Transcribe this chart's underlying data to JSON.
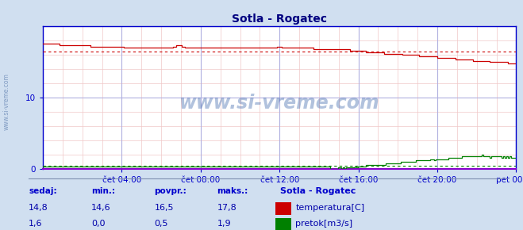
{
  "title": "Sotla - Rogatec",
  "title_color": "#000080",
  "bg_color": "#d0dff0",
  "plot_bg_color": "#ffffff",
  "grid_color_major": "#b0b0e0",
  "grid_color_minor": "#f0c8c8",
  "temp_color": "#cc0000",
  "flow_color": "#008000",
  "axis_color": "#0000cc",
  "border_color": "#0000cc",
  "xaxis_labels": [
    "čet 04:00",
    "čet 08:00",
    "čet 12:00",
    "čet 16:00",
    "čet 20:00",
    "pet 00:00"
  ],
  "xaxis_tick_positions": [
    0.1667,
    0.3333,
    0.5,
    0.6667,
    0.8333,
    1.0
  ],
  "ylim": [
    0,
    20
  ],
  "ytick_positions": [
    0,
    10
  ],
  "ytick_labels": [
    "0",
    "10"
  ],
  "n_points": 288,
  "temp_avg": 16.5,
  "flow_avg": 0.5,
  "legend_title": "Sotla - Rogatec",
  "legend_temp": "temperatura[C]",
  "legend_flow": "pretok[m3/s]",
  "watermark": "www.si-vreme.com",
  "watermark_color": "#2050a0",
  "watermark_alpha": 0.35,
  "footer_color": "#0000aa",
  "footer_bold_color": "#0000cc",
  "footer_labels": [
    "sedaj:",
    "min.:",
    "povpr.:",
    "maks.:"
  ],
  "footer_temp_vals": [
    "14,8",
    "14,6",
    "16,5",
    "17,8"
  ],
  "footer_flow_vals": [
    "1,6",
    "0,0",
    "0,5",
    "1,9"
  ],
  "separator_color": "#8090b0"
}
